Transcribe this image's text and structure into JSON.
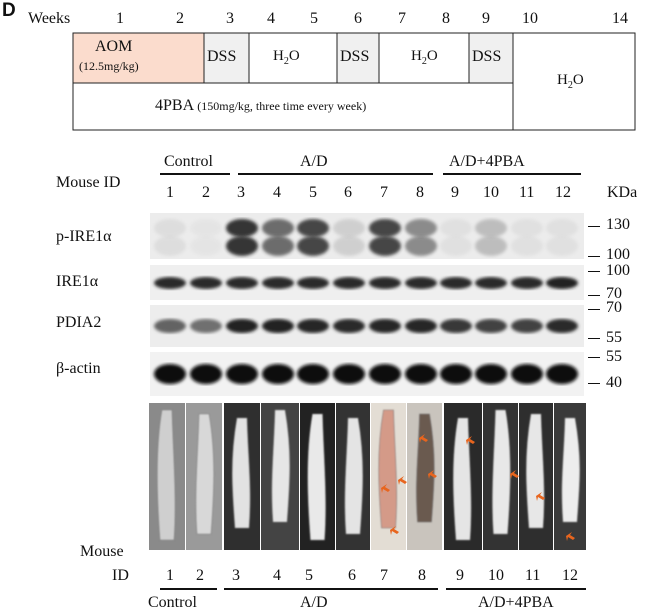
{
  "panel_letter": "D",
  "schedule": {
    "weeks_label": "Weeks",
    "week_numbers": [
      "1",
      "2",
      "3",
      "4",
      "5",
      "6",
      "7",
      "8",
      "9",
      "10",
      "14"
    ],
    "aom_label": "AOM",
    "aom_dose": "(12.5mg/kg)",
    "dss_label": "DSS",
    "h2o_main": "H",
    "h2o_sub": "2",
    "h2o_tail": "O",
    "pba_label": "4PBA",
    "pba_dose": "(150mg/kg, three time every week)",
    "aom_color": "#fbdccd",
    "dss_color": "#f0f0f0"
  },
  "blot": {
    "mouse_id_label": "Mouse ID",
    "groups": [
      {
        "name": "Control",
        "lanes": [
          "1",
          "2"
        ]
      },
      {
        "name": "A/D",
        "lanes": [
          "3",
          "4",
          "5",
          "6",
          "7",
          "8"
        ]
      },
      {
        "name": "A/D+4PBA",
        "lanes": [
          "9",
          "10",
          "11",
          "12"
        ]
      }
    ],
    "unit": "KDa",
    "rows": [
      {
        "name": "p-IRE1α",
        "markers": [
          "130",
          "100"
        ]
      },
      {
        "name": "IRE1α",
        "markers": [
          "100",
          "70"
        ]
      },
      {
        "name": "PDIA2",
        "markers": [
          "70",
          "55"
        ]
      },
      {
        "name": "β-actin",
        "markers": [
          "55",
          "40"
        ]
      }
    ],
    "band_intensity": {
      "p-IRE1α": [
        0.25,
        0.12,
        0.9,
        0.75,
        0.85,
        0.35,
        0.85,
        0.65,
        0.2,
        0.45,
        0.2,
        0.2
      ],
      "IRE1α": [
        0.85,
        0.85,
        0.85,
        0.85,
        0.85,
        0.85,
        0.85,
        0.85,
        0.85,
        0.85,
        0.85,
        0.9
      ],
      "PDIA2": [
        0.6,
        0.55,
        0.9,
        0.9,
        0.88,
        0.85,
        0.88,
        0.88,
        0.8,
        0.75,
        0.75,
        0.85
      ],
      "β-actin": [
        1,
        1,
        1,
        1,
        1,
        1,
        1,
        1,
        1,
        1,
        1,
        1
      ]
    }
  },
  "colon_photos": {
    "mouse_label": "Mouse",
    "id_label": "ID",
    "lanes": [
      "1",
      "2",
      "3",
      "4",
      "5",
      "6",
      "7",
      "8",
      "9",
      "10",
      "11",
      "12"
    ],
    "groups": [
      "Control",
      "A/D",
      "A/D+4PBA"
    ],
    "tumor_arrow_color": "#e8651e"
  }
}
